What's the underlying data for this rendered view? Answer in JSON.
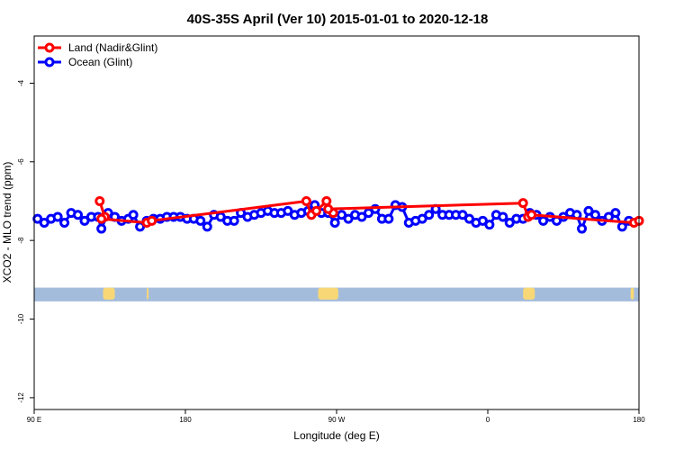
{
  "chart_data": {
    "type": "line",
    "title": "40S-35S April (Ver 10)   2015-01-01 to 2020-12-18",
    "xlabel": "Longitude (deg E)",
    "ylabel": "XCO2 - MLO trend (ppm)",
    "xlim": [
      90,
      450
    ],
    "ylim": [
      -12.3,
      -2.8
    ],
    "xticks": [
      {
        "value": 90,
        "label": "90 E"
      },
      {
        "value": 180,
        "label": "180"
      },
      {
        "value": 270,
        "label": "90 W"
      },
      {
        "value": 360,
        "label": "0"
      },
      {
        "value": 450,
        "label": "180"
      }
    ],
    "extra_xticks": [
      {
        "value": 540,
        "label": "90 E"
      },
      {
        "value": 630,
        "label": "180"
      }
    ],
    "yticks": [
      -4,
      -6,
      -8,
      -10,
      -12
    ],
    "grid": false,
    "legend_position": "top-left",
    "colors": {
      "land": "#ff0000",
      "ocean": "#0000ff",
      "sea_band": "#a4bcdc",
      "land_band": "#f8d876"
    },
    "series": [
      {
        "name": "Land (Nadir&Glint)",
        "color": "#ff0000",
        "points": [
          [
            129,
            -7.0
          ],
          [
            132,
            -7.4
          ],
          [
            130,
            -7.45
          ],
          [
            157,
            -7.55
          ],
          [
            160,
            -7.5
          ],
          [
            252,
            -7.0
          ],
          [
            255,
            -7.35
          ],
          [
            258,
            -7.25
          ],
          [
            264,
            -7.0
          ],
          [
            268,
            -7.3
          ],
          [
            265,
            -7.2
          ],
          [
            381,
            -7.05
          ],
          [
            384,
            -7.4
          ],
          [
            386,
            -7.35
          ],
          [
            447,
            -7.55
          ],
          [
            450,
            -7.5
          ]
        ]
      },
      {
        "name": "Ocean (Glint)",
        "color": "#0000ff",
        "points": [
          [
            92,
            -7.45
          ],
          [
            96,
            -7.55
          ],
          [
            100,
            -7.45
          ],
          [
            104,
            -7.4
          ],
          [
            108,
            -7.55
          ],
          [
            112,
            -7.3
          ],
          [
            116,
            -7.35
          ],
          [
            120,
            -7.5
          ],
          [
            124,
            -7.4
          ],
          [
            128,
            -7.4
          ],
          [
            130,
            -7.7
          ],
          [
            134,
            -7.3
          ],
          [
            138,
            -7.4
          ],
          [
            142,
            -7.5
          ],
          [
            146,
            -7.45
          ],
          [
            149,
            -7.35
          ],
          [
            153,
            -7.65
          ],
          [
            157,
            -7.5
          ],
          [
            161,
            -7.45
          ],
          [
            165,
            -7.45
          ],
          [
            169,
            -7.4
          ],
          [
            173,
            -7.4
          ],
          [
            177,
            -7.4
          ],
          [
            181,
            -7.45
          ],
          [
            185,
            -7.45
          ],
          [
            189,
            -7.5
          ],
          [
            193,
            -7.65
          ],
          [
            197,
            -7.35
          ],
          [
            201,
            -7.4
          ],
          [
            205,
            -7.5
          ],
          [
            209,
            -7.5
          ],
          [
            213,
            -7.3
          ],
          [
            217,
            -7.4
          ],
          [
            221,
            -7.35
          ],
          [
            225,
            -7.3
          ],
          [
            229,
            -7.25
          ],
          [
            233,
            -7.3
          ],
          [
            237,
            -7.3
          ],
          [
            241,
            -7.25
          ],
          [
            245,
            -7.35
          ],
          [
            249,
            -7.3
          ],
          [
            253,
            -7.25
          ],
          [
            257,
            -7.1
          ],
          [
            261,
            -7.3
          ],
          [
            265,
            -7.3
          ],
          [
            269,
            -7.55
          ],
          [
            273,
            -7.35
          ],
          [
            277,
            -7.45
          ],
          [
            281,
            -7.35
          ],
          [
            285,
            -7.4
          ],
          [
            289,
            -7.3
          ],
          [
            293,
            -7.2
          ],
          [
            297,
            -7.45
          ],
          [
            301,
            -7.45
          ],
          [
            305,
            -7.1
          ],
          [
            309,
            -7.15
          ],
          [
            313,
            -7.55
          ],
          [
            317,
            -7.5
          ],
          [
            321,
            -7.45
          ],
          [
            325,
            -7.35
          ],
          [
            329,
            -7.2
          ],
          [
            333,
            -7.35
          ],
          [
            337,
            -7.35
          ],
          [
            341,
            -7.35
          ],
          [
            345,
            -7.35
          ],
          [
            349,
            -7.45
          ],
          [
            353,
            -7.55
          ],
          [
            357,
            -7.5
          ],
          [
            361,
            -7.6
          ],
          [
            365,
            -7.35
          ],
          [
            369,
            -7.4
          ],
          [
            373,
            -7.55
          ],
          [
            377,
            -7.45
          ],
          [
            381,
            -7.45
          ],
          [
            385,
            -7.3
          ],
          [
            389,
            -7.35
          ],
          [
            393,
            -7.5
          ],
          [
            397,
            -7.4
          ],
          [
            401,
            -7.5
          ],
          [
            405,
            -7.4
          ],
          [
            409,
            -7.3
          ],
          [
            413,
            -7.35
          ],
          [
            416,
            -7.7
          ],
          [
            420,
            -7.25
          ],
          [
            424,
            -7.35
          ],
          [
            428,
            -7.5
          ],
          [
            432,
            -7.4
          ],
          [
            436,
            -7.3
          ],
          [
            440,
            -7.65
          ],
          [
            444,
            -7.5
          ]
        ]
      }
    ],
    "land_mask_band": {
      "y_range": [
        -9.55,
        -9.2
      ],
      "land_segments": [
        [
          131,
          138
        ],
        [
          157,
          158
        ],
        [
          259,
          271
        ],
        [
          381,
          388
        ],
        [
          445,
          447
        ]
      ]
    }
  }
}
